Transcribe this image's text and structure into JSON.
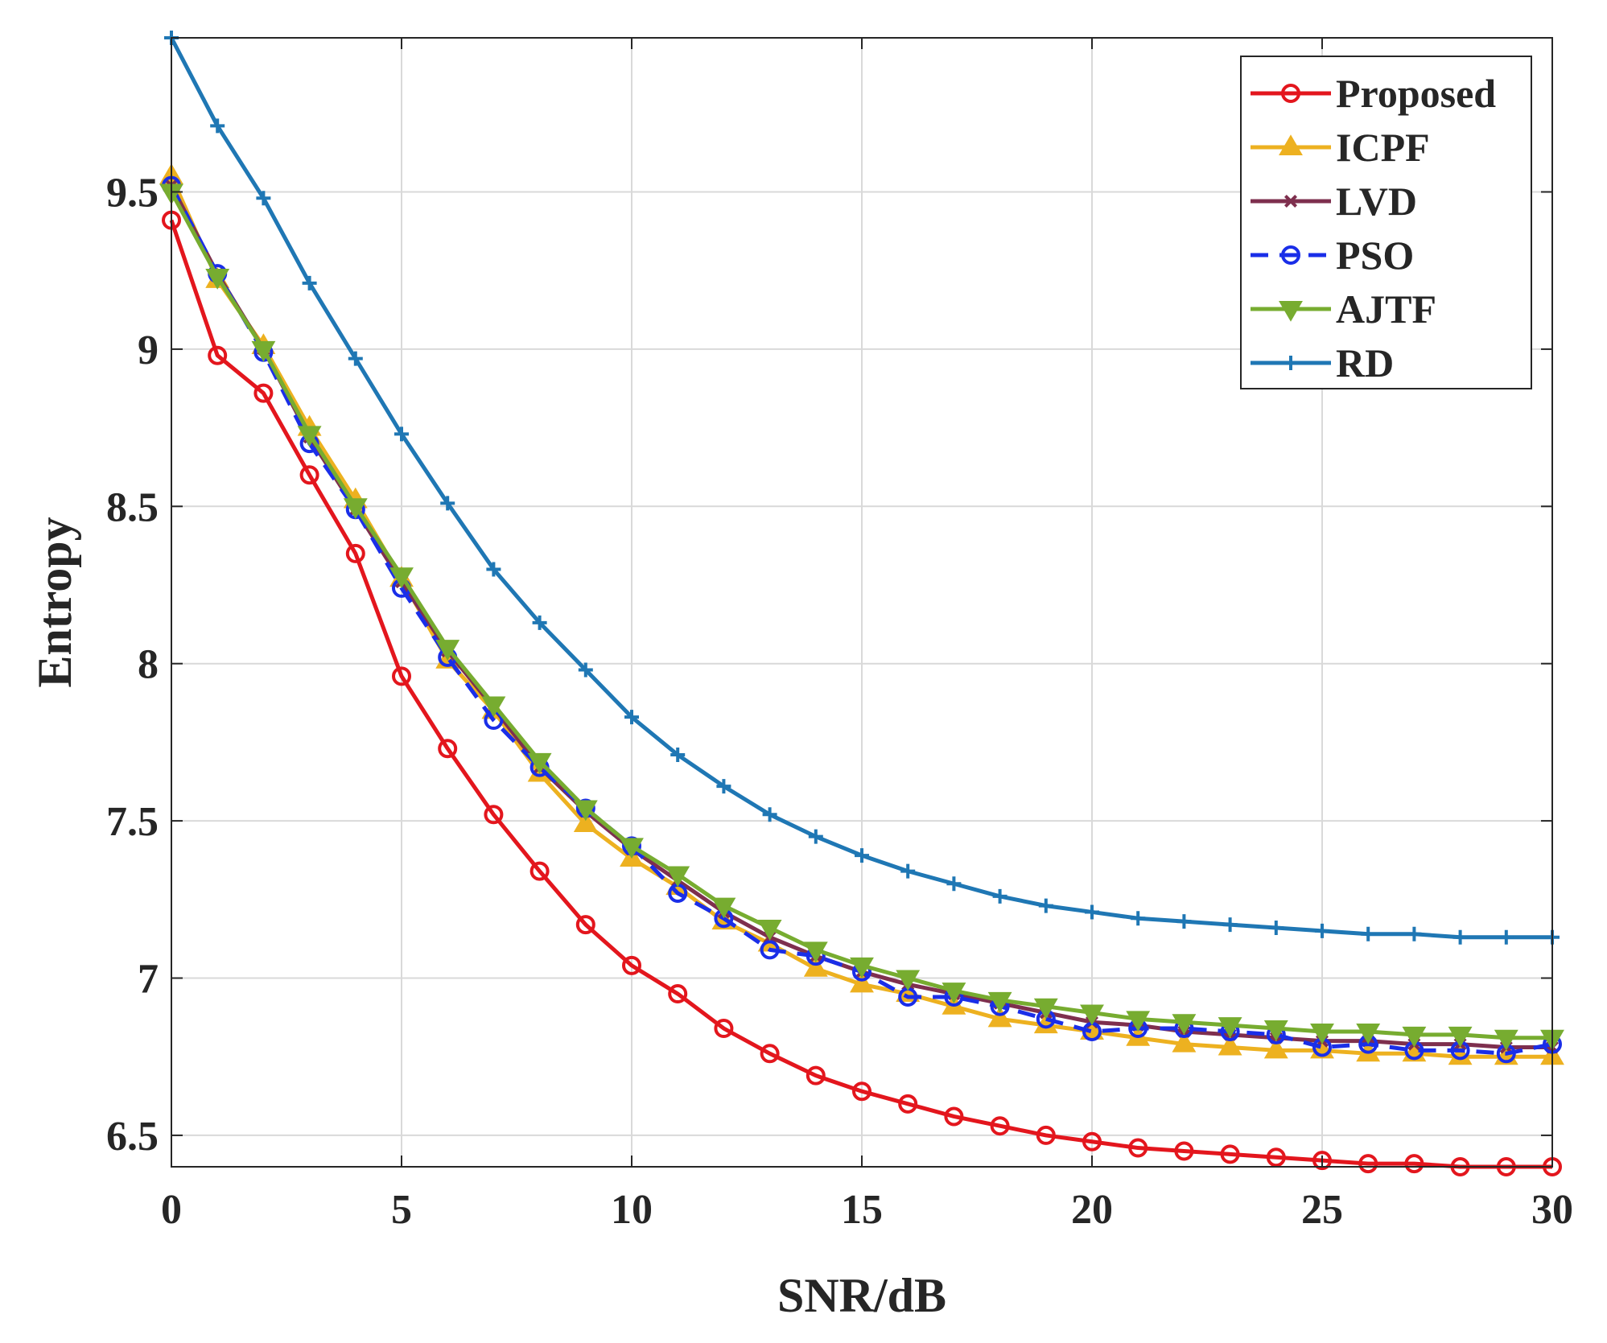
{
  "chart_data": {
    "type": "line",
    "title": "",
    "xlabel": "SNR/dB",
    "ylabel": "Entropy",
    "xlim": [
      0,
      30
    ],
    "ylim": [
      6.4,
      9.99
    ],
    "xticks": [
      0,
      5,
      10,
      15,
      20,
      25,
      30
    ],
    "yticks": [
      6.5,
      7,
      7.5,
      8,
      8.5,
      9,
      9.5
    ],
    "xtick_labels": [
      "0",
      "5",
      "10",
      "15",
      "20",
      "25",
      "30"
    ],
    "ytick_labels": [
      "6.5",
      "7",
      "7.5",
      "8",
      "8.5",
      "9",
      "9.5"
    ],
    "grid": true,
    "legend_position": "top-right",
    "x": [
      0,
      1,
      2,
      3,
      4,
      5,
      6,
      7,
      8,
      9,
      10,
      11,
      12,
      13,
      14,
      15,
      16,
      17,
      18,
      19,
      20,
      21,
      22,
      23,
      24,
      25,
      26,
      27,
      28,
      29,
      30
    ],
    "series": [
      {
        "name": "Proposed",
        "color": "#e3161d",
        "marker": "circle",
        "dash": "solid",
        "values": [
          9.41,
          8.98,
          8.86,
          8.6,
          8.35,
          7.96,
          7.73,
          7.52,
          7.34,
          7.17,
          7.04,
          6.95,
          6.84,
          6.76,
          6.69,
          6.64,
          6.6,
          6.56,
          6.53,
          6.5,
          6.48,
          6.46,
          6.45,
          6.44,
          6.43,
          6.42,
          6.41,
          6.41,
          6.4,
          6.4,
          6.4
        ]
      },
      {
        "name": "ICPF",
        "color": "#edb120",
        "marker": "triangle-up",
        "dash": "solid",
        "values": [
          9.55,
          9.22,
          9.01,
          8.75,
          8.52,
          8.27,
          8.01,
          7.85,
          7.65,
          7.49,
          7.38,
          7.29,
          7.18,
          7.11,
          7.03,
          6.98,
          6.95,
          6.91,
          6.87,
          6.85,
          6.83,
          6.81,
          6.79,
          6.78,
          6.77,
          6.77,
          6.76,
          6.76,
          6.75,
          6.75,
          6.75
        ]
      },
      {
        "name": "LVD",
        "color": "#7e2f4e",
        "marker": "x",
        "dash": "solid",
        "values": [
          9.52,
          9.24,
          9.0,
          8.72,
          8.49,
          8.26,
          8.04,
          7.86,
          7.67,
          7.53,
          7.41,
          7.31,
          7.21,
          7.13,
          7.07,
          7.02,
          6.98,
          6.95,
          6.92,
          6.89,
          6.86,
          6.85,
          6.83,
          6.82,
          6.81,
          6.8,
          6.8,
          6.79,
          6.79,
          6.78,
          6.78
        ]
      },
      {
        "name": "PSO",
        "color": "#1a2ee8",
        "marker": "circle",
        "dash": "dashed",
        "values": [
          9.52,
          9.24,
          8.99,
          8.7,
          8.49,
          8.24,
          8.02,
          7.82,
          7.67,
          7.54,
          7.42,
          7.27,
          7.19,
          7.09,
          7.07,
          7.02,
          6.94,
          6.94,
          6.91,
          6.87,
          6.83,
          6.84,
          6.84,
          6.83,
          6.82,
          6.78,
          6.79,
          6.77,
          6.77,
          6.76,
          6.79
        ]
      },
      {
        "name": "AJTF",
        "color": "#77ac30",
        "marker": "triangle-down",
        "dash": "solid",
        "values": [
          9.5,
          9.23,
          9.0,
          8.73,
          8.5,
          8.28,
          8.05,
          7.87,
          7.69,
          7.54,
          7.42,
          7.33,
          7.23,
          7.16,
          7.09,
          7.04,
          7.0,
          6.96,
          6.93,
          6.91,
          6.89,
          6.87,
          6.86,
          6.85,
          6.84,
          6.83,
          6.83,
          6.82,
          6.82,
          6.81,
          6.81
        ]
      },
      {
        "name": "RD",
        "color": "#1f77b4",
        "marker": "plus",
        "dash": "solid",
        "values": [
          9.99,
          9.71,
          9.48,
          9.21,
          8.97,
          8.73,
          8.51,
          8.3,
          8.13,
          7.98,
          7.83,
          7.71,
          7.61,
          7.52,
          7.45,
          7.39,
          7.34,
          7.3,
          7.26,
          7.23,
          7.21,
          7.19,
          7.18,
          7.17,
          7.16,
          7.15,
          7.14,
          7.14,
          7.13,
          7.13,
          7.13
        ]
      }
    ]
  }
}
